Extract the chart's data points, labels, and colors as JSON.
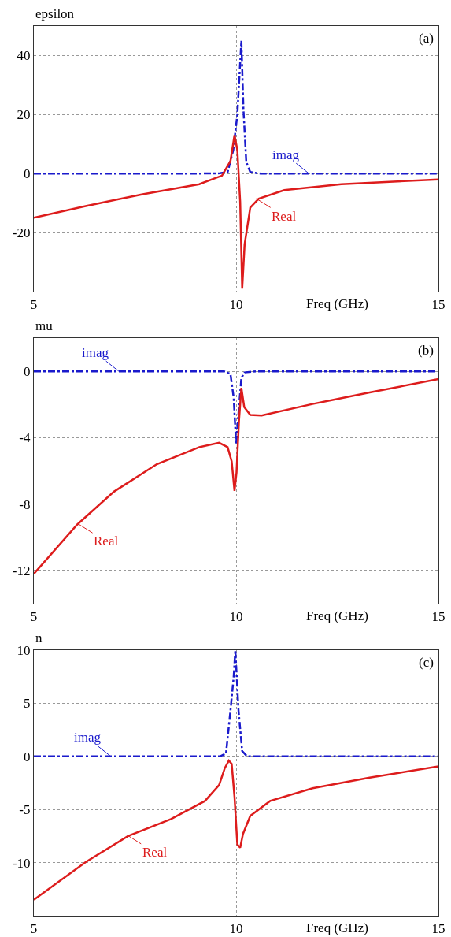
{
  "chart_data": [
    {
      "type": "line",
      "ylabel": "epsilon",
      "xlabel": "Freq (GHz)",
      "xlim": [
        5,
        15
      ],
      "xticks": [
        5,
        10,
        15
      ],
      "ylim": [
        -40,
        50
      ],
      "yticks": [
        40,
        20,
        0,
        -20
      ],
      "grid": true,
      "marker": "none",
      "annotations": [
        "(a)",
        {
          "text": "imag",
          "x": 11.8,
          "y": 0
        },
        {
          "text": "Real",
          "x": 10.5,
          "y": -8.5
        }
      ],
      "series": [
        {
          "line_style": "dashed",
          "color": "#1a1acc",
          "x": [
            5,
            7,
            9,
            9.6,
            9.79,
            9.93,
            10.03,
            10.13,
            10.18,
            10.25,
            10.35,
            10.6,
            12,
            15
          ],
          "values": [
            0,
            0,
            0,
            0.1,
            0.5,
            8,
            20,
            45,
            22,
            4,
            0.5,
            0,
            0,
            0
          ]
        },
        {
          "line_style": "solid",
          "color": "#dd1c1c",
          "x": [
            5,
            6.28,
            7.69,
            9.09,
            9.65,
            9.86,
            9.96,
            10.03,
            10.1,
            10.15,
            10.21,
            10.35,
            10.56,
            11.19,
            12.6,
            15
          ],
          "values": [
            -15,
            -11,
            -7,
            -3.6,
            -0.7,
            4.2,
            13,
            8,
            -9.5,
            -39,
            -24,
            -11.5,
            -8.5,
            -5.6,
            -3.6,
            -2
          ]
        }
      ]
    },
    {
      "type": "line",
      "ylabel": "mu",
      "xlabel": "Freq (GHz)",
      "xlim": [
        5,
        15
      ],
      "xticks": [
        5,
        10,
        15
      ],
      "ylim": [
        -14,
        2
      ],
      "yticks": [
        0,
        -4,
        -8,
        -12
      ],
      "grid": true,
      "marker": "none",
      "annotations": [
        "(b)",
        {
          "text": "imag",
          "x": 7.1,
          "y": 0
        },
        {
          "text": "Real",
          "x": 6.1,
          "y": -9.2
        }
      ],
      "series": [
        {
          "line_style": "dashed",
          "color": "#1a1acc",
          "x": [
            5,
            7,
            9,
            9.7,
            9.86,
            9.94,
            10.0,
            10.06,
            10.13,
            10.21,
            10.49,
            12,
            15
          ],
          "values": [
            0,
            0,
            0,
            0,
            -0.16,
            -1.6,
            -4.4,
            -2.5,
            -0.4,
            -0.07,
            0,
            0,
            0
          ]
        },
        {
          "line_style": "solid",
          "color": "#dd1c1c",
          "x": [
            5,
            6.07,
            6.98,
            8.04,
            9.09,
            9.58,
            9.79,
            9.89,
            9.96,
            10.01,
            10.07,
            10.13,
            10.2,
            10.35,
            10.63,
            11.89,
            13.3,
            15
          ],
          "values": [
            -12.2,
            -9.24,
            -7.25,
            -5.6,
            -4.57,
            -4.31,
            -4.57,
            -5.43,
            -7.2,
            -6.1,
            -3.0,
            -1.0,
            -2.15,
            -2.63,
            -2.66,
            -1.97,
            -1.28,
            -0.47
          ]
        }
      ]
    },
    {
      "type": "line",
      "ylabel": "n",
      "xlabel": "Freq (GHz)",
      "xlim": [
        5,
        15
      ],
      "xticks": [
        5,
        10,
        15
      ],
      "ylim": [
        -15,
        10
      ],
      "yticks": [
        10,
        5,
        0,
        -5,
        -10
      ],
      "grid": true,
      "marker": "none",
      "annotations": [
        "(c)",
        {
          "text": "imag",
          "x": 6.9,
          "y": 0
        },
        {
          "text": "Real",
          "x": 7.3,
          "y": -7.4
        }
      ],
      "series": [
        {
          "line_style": "dashed",
          "color": "#1a1acc",
          "x": [
            5,
            7,
            9,
            9.6,
            9.75,
            9.86,
            9.94,
            9.98,
            10.06,
            10.15,
            10.27,
            12,
            15
          ],
          "values": [
            0,
            0,
            0,
            0,
            0.27,
            4.3,
            7.5,
            10,
            4.3,
            0.5,
            0,
            0,
            0
          ]
        },
        {
          "line_style": "solid",
          "color": "#dd1c1c",
          "x": [
            5,
            6.28,
            7.33,
            8.39,
            9.23,
            9.58,
            9.72,
            9.82,
            9.89,
            9.96,
            10.03,
            10.1,
            10.17,
            10.35,
            10.84,
            11.89,
            13.3,
            15
          ],
          "values": [
            -13.5,
            -9.95,
            -7.5,
            -5.9,
            -4.2,
            -2.7,
            -1.1,
            -0.4,
            -0.7,
            -3.8,
            -8.3,
            -8.6,
            -7.3,
            -5.6,
            -4.2,
            -3.0,
            -2.0,
            -0.94
          ]
        }
      ]
    }
  ]
}
